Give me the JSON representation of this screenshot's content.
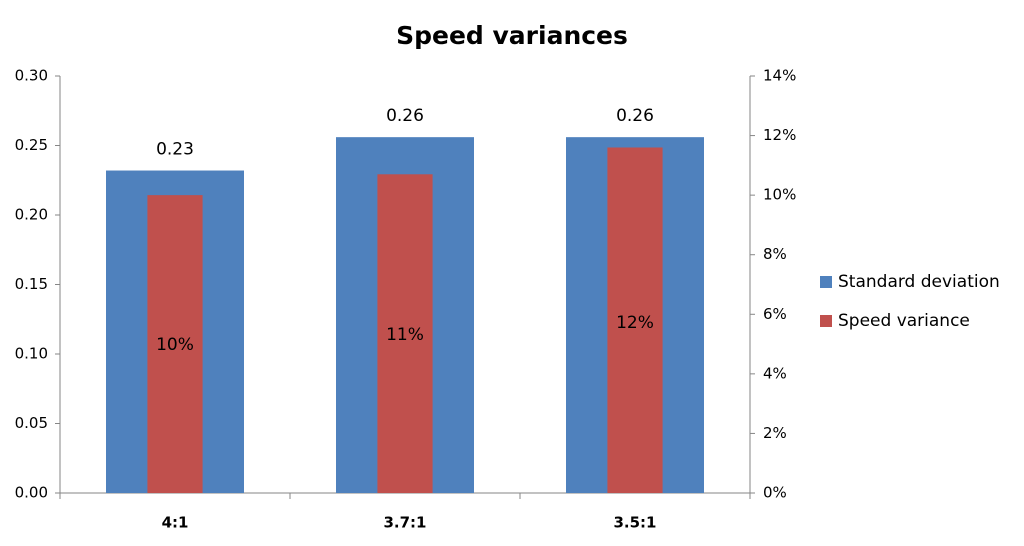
{
  "chart_data": {
    "type": "bar",
    "title": "Speed variances",
    "categories": [
      "4:1",
      "3.7:1",
      "3.5:1"
    ],
    "series": [
      {
        "name": "Standard deviation",
        "color": "#4f81bd",
        "values": [
          0.232,
          0.256,
          0.256
        ],
        "value_labels": [
          "0.23",
          "0.26",
          "0.26"
        ]
      },
      {
        "name": "Speed variance",
        "color": "#c0504d",
        "axis": "y2",
        "values": [
          10.0,
          10.7,
          11.6
        ],
        "value_labels": [
          "10%",
          "11%",
          "12%"
        ]
      }
    ],
    "ylim": [
      0,
      0.3
    ],
    "yticks": [
      {
        "value": 0,
        "label": "0.00"
      },
      0.05,
      {
        "value": 0.1,
        "label": "0.10"
      },
      0.15,
      {
        "value": 0.2,
        "label": "0.20"
      },
      0.25,
      {
        "value": 0.3,
        "label": "0.30"
      }
    ],
    "y2lim": [
      0,
      14
    ],
    "y2ticks": [
      {
        "value": 0,
        "label": "0%"
      },
      {
        "value": 2,
        "label": "2%"
      },
      {
        "value": 4,
        "label": "4%"
      },
      {
        "value": 6,
        "label": "6%"
      },
      {
        "value": 8,
        "label": "8%"
      },
      {
        "value": 10,
        "label": "10%"
      },
      {
        "value": 12,
        "label": "12%"
      },
      {
        "value": 14,
        "label": "14%"
      }
    ],
    "grid": false,
    "legend": "right"
  }
}
